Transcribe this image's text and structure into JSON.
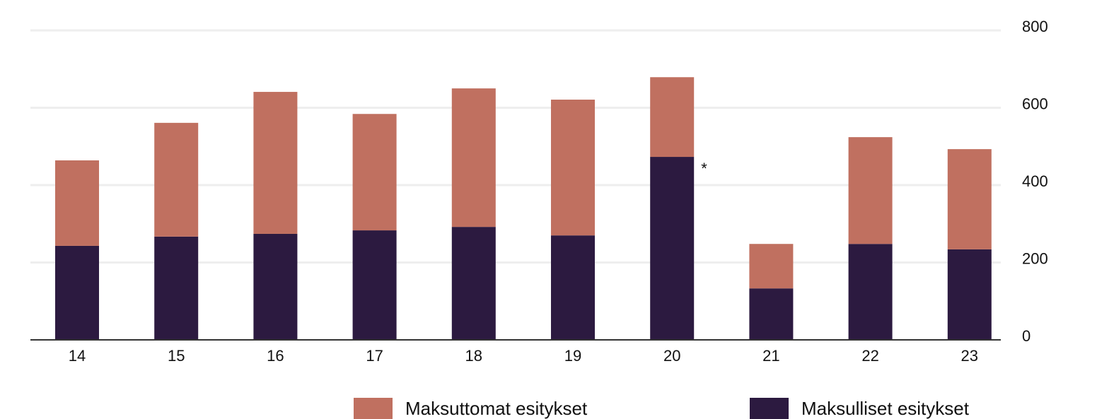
{
  "chart_data": {
    "type": "stacked_bar",
    "categories": [
      "14",
      "15",
      "16",
      "17",
      "18",
      "19",
      "20",
      "21",
      "22",
      "23"
    ],
    "series": [
      {
        "name": "Maksuttomat esitykset",
        "color": "#c07060",
        "values": [
          221,
          294,
          367,
          301,
          358,
          351,
          206,
          115,
          276,
          259
        ]
      },
      {
        "name": "Maksulliset esitykset",
        "color": "#2c1a40",
        "values": [
          243,
          267,
          274,
          283,
          292,
          270,
          473,
          133,
          248,
          234
        ]
      }
    ],
    "annotations": [
      {
        "text": "*",
        "category": "20"
      }
    ],
    "ylim": [
      0,
      800
    ],
    "yticks": [
      0,
      200,
      400,
      600,
      800
    ],
    "grid": true
  }
}
